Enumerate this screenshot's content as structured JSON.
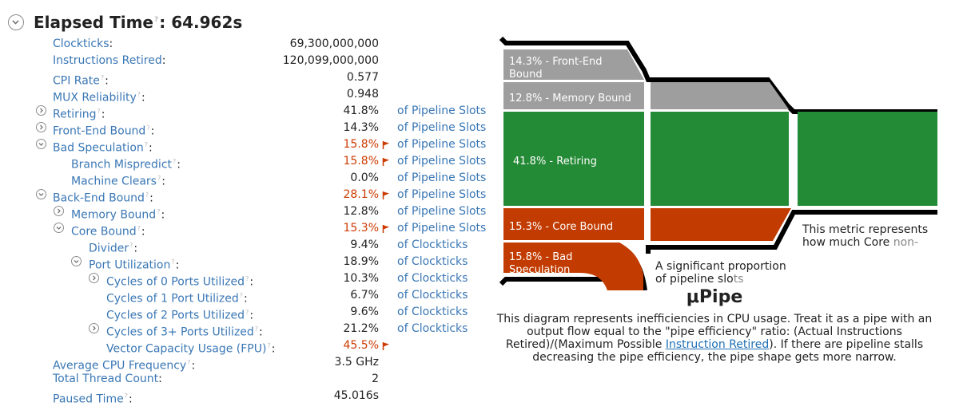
{
  "header": {
    "title": "Elapsed Time",
    "colon": ":",
    "value": "64.962s"
  },
  "metrics": [
    {
      "label": "Clockticks",
      "value": "69,300,000,000",
      "unit": "",
      "warn": false,
      "level": 0,
      "toggle": "none",
      "hint": false
    },
    {
      "label": "Instructions Retired",
      "value": "120,099,000,000",
      "unit": "",
      "warn": false,
      "level": 0,
      "toggle": "none",
      "hint": false
    },
    {
      "label": "CPI Rate",
      "value": "0.577",
      "unit": "",
      "warn": false,
      "level": 0,
      "toggle": "none",
      "hint": true
    },
    {
      "label": "MUX Reliability",
      "value": "0.948",
      "unit": "",
      "warn": false,
      "level": 0,
      "toggle": "none",
      "hint": true
    },
    {
      "label": "Retiring",
      "value": "41.8%",
      "unit": "of Pipeline Slots",
      "warn": false,
      "level": 0,
      "toggle": "collapsed",
      "hint": true
    },
    {
      "label": "Front-End Bound",
      "value": "14.3%",
      "unit": "of Pipeline Slots",
      "warn": false,
      "level": 0,
      "toggle": "collapsed",
      "hint": true
    },
    {
      "label": "Bad Speculation",
      "value": "15.8%",
      "unit": "of Pipeline Slots",
      "warn": true,
      "level": 0,
      "toggle": "expanded",
      "hint": true
    },
    {
      "label": "Branch Mispredict",
      "value": "15.8%",
      "unit": "of Pipeline Slots",
      "warn": true,
      "level": 1,
      "toggle": "none",
      "hint": true
    },
    {
      "label": "Machine Clears",
      "value": "0.0%",
      "unit": "of Pipeline Slots",
      "warn": false,
      "level": 1,
      "toggle": "none",
      "hint": true
    },
    {
      "label": "Back-End Bound",
      "value": "28.1%",
      "unit": "of Pipeline Slots",
      "warn": true,
      "level": 0,
      "toggle": "expanded",
      "hint": true
    },
    {
      "label": "Memory Bound",
      "value": "12.8%",
      "unit": "of Pipeline Slots",
      "warn": false,
      "level": 1,
      "toggle": "collapsed",
      "hint": true
    },
    {
      "label": "Core Bound",
      "value": "15.3%",
      "unit": "of Pipeline Slots",
      "warn": true,
      "level": 1,
      "toggle": "expanded",
      "hint": true
    },
    {
      "label": "Divider",
      "value": "9.4%",
      "unit": "of Clockticks",
      "warn": false,
      "level": 2,
      "toggle": "none",
      "hint": true
    },
    {
      "label": "Port Utilization",
      "value": "18.9%",
      "unit": "of Clockticks",
      "warn": false,
      "level": 2,
      "toggle": "expanded",
      "hint": true
    },
    {
      "label": "Cycles of 0 Ports Utilized",
      "value": "10.3%",
      "unit": "of Clockticks",
      "warn": false,
      "level": 3,
      "toggle": "collapsed",
      "hint": true
    },
    {
      "label": "Cycles of 1 Port Utilized",
      "value": "6.7%",
      "unit": "of Clockticks",
      "warn": false,
      "level": 3,
      "toggle": "none",
      "hint": true
    },
    {
      "label": "Cycles of 2 Ports Utilized",
      "value": "9.6%",
      "unit": "of Clockticks",
      "warn": false,
      "level": 3,
      "toggle": "none",
      "hint": true
    },
    {
      "label": "Cycles of 3+ Ports Utilized",
      "value": "21.2%",
      "unit": "of Clockticks",
      "warn": false,
      "level": 3,
      "toggle": "collapsed",
      "hint": true
    },
    {
      "label": "Vector Capacity Usage (FPU)",
      "value": "45.5%",
      "unit": "",
      "warn": true,
      "level": 3,
      "toggle": "none",
      "hint": true
    },
    {
      "label": "Average CPU Frequency",
      "value": "3.5 GHz",
      "unit": "",
      "warn": false,
      "level": 0,
      "toggle": "none",
      "hint": true
    },
    {
      "label": "Total Thread Count",
      "value": "2",
      "unit": "",
      "warn": false,
      "level": 0,
      "toggle": "none",
      "hint": false
    },
    {
      "label": "Paused Time",
      "value": "45.016s",
      "unit": "",
      "warn": false,
      "level": 0,
      "toggle": "none",
      "hint": true
    }
  ],
  "upipe": {
    "segments": {
      "front_end": {
        "line1": "14.3% - Front-End",
        "line2": "Bound"
      },
      "memory": "12.8% - Memory Bound",
      "retiring": "41.8% - Retiring",
      "core": "15.3% - Core Bound",
      "bad_spec": {
        "line1": "15.8% - Bad",
        "line2": "Speculation"
      }
    },
    "tooltip_core": {
      "line1": "This metric represents",
      "line2_a": "how much Core",
      "line2_b": "non-"
    },
    "tooltip_bad": {
      "line1": "A significant proportion",
      "line2_a": "of pipeline slo",
      "line2_b": "ts"
    },
    "title": "μPipe",
    "description_pre": "This diagram represents inefficiencies in CPU usage. Treat it as a pipe with an output flow equal to the \"pipe efficiency\" ratio: (Actual Instructions Retired)/(Maximum Possible ",
    "description_link": "Instruction Retired",
    "description_post": "). If there are pipeline stalls decreasing the pipe efficiency, the pipe shape gets more narrow."
  },
  "colors": {
    "link": "#3a77b5",
    "warn": "#cc3a00",
    "gray": "#9e9e9e",
    "green": "#238a35",
    "orange": "#c23b00"
  }
}
